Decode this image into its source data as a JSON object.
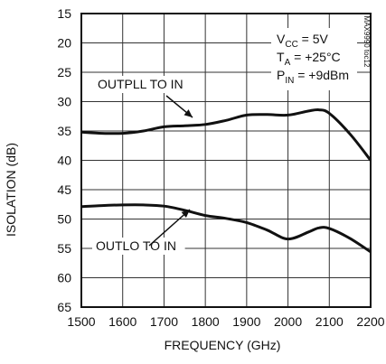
{
  "chart_data": {
    "type": "line",
    "xlabel": "FREQUENCY (GHz)",
    "ylabel": "ISOLATION (dB)",
    "xlim": [
      1500,
      2200
    ],
    "ylim": [
      15,
      65
    ],
    "y_inverted": true,
    "grid": true,
    "x_ticks": [
      "1500",
      "1600",
      "1700",
      "1800",
      "1900",
      "2000",
      "2100",
      "2200"
    ],
    "y_ticks": [
      "15",
      "20",
      "25",
      "30",
      "35",
      "40",
      "45",
      "50",
      "55",
      "60",
      "65"
    ],
    "conditions": {
      "vcc": {
        "sym": "V",
        "sub": "CC",
        "value": " = 5V"
      },
      "ta": {
        "sym": "T",
        "sub": "A",
        "value": " = +25°C"
      },
      "pin": {
        "sym": "P",
        "sub": "IN",
        "value": " = +9dBm"
      }
    },
    "figure_id": "MAX9990 toc12",
    "series": [
      {
        "name": "OUTPLL TO IN",
        "x": [
          1500,
          1550,
          1600,
          1650,
          1700,
          1750,
          1800,
          1850,
          1900,
          1950,
          2000,
          2050,
          2075,
          2100,
          2150,
          2200
        ],
        "y": [
          35.2,
          35.4,
          35.4,
          35.0,
          34.3,
          34.1,
          33.9,
          33.2,
          32.3,
          32.2,
          32.3,
          31.6,
          31.4,
          32.0,
          35.5,
          40.0
        ]
      },
      {
        "name": "OUTLO TO IN",
        "x": [
          1500,
          1550,
          1600,
          1650,
          1700,
          1750,
          1800,
          1850,
          1900,
          1950,
          2000,
          2050,
          2075,
          2100,
          2150,
          2200
        ],
        "y": [
          47.9,
          47.7,
          47.6,
          47.6,
          47.8,
          48.5,
          49.4,
          49.9,
          50.6,
          51.9,
          53.4,
          52.2,
          51.5,
          51.6,
          53.3,
          55.6
        ]
      }
    ]
  }
}
